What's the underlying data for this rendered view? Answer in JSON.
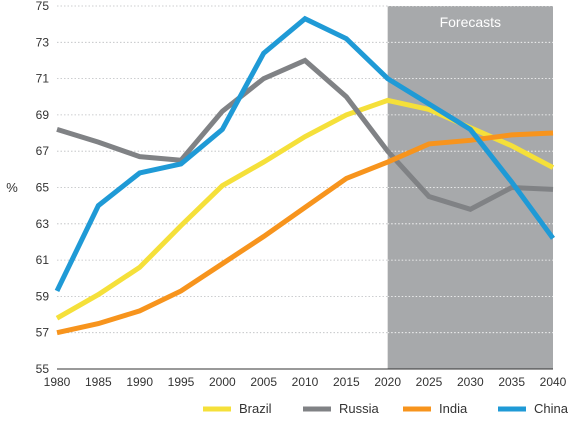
{
  "chart_data": {
    "type": "line",
    "title": "",
    "xlabel": "",
    "ylabel": "%",
    "ylim": [
      55,
      75
    ],
    "xlim": [
      1980,
      2040
    ],
    "yticks": [
      55,
      57,
      59,
      61,
      63,
      65,
      67,
      69,
      71,
      73,
      75
    ],
    "x": [
      1980,
      1985,
      1990,
      1995,
      2000,
      2005,
      2010,
      2015,
      2020,
      2025,
      2030,
      2035,
      2040
    ],
    "forecast": {
      "label": "Forecasts",
      "start": 2020,
      "end": 2040,
      "color": "#a7a9ab"
    },
    "grid": "horizontal",
    "legend_position": "bottom-right",
    "series": [
      {
        "name": "Brazil",
        "color": "#f5e03a",
        "values": [
          57.8,
          59.1,
          60.6,
          62.9,
          65.1,
          66.4,
          67.8,
          69.0,
          69.8,
          69.3,
          68.3,
          67.3,
          66.1
        ]
      },
      {
        "name": "Russia",
        "color": "#808285",
        "values": [
          68.2,
          67.5,
          66.7,
          66.5,
          69.2,
          71.0,
          72.0,
          70.0,
          67.0,
          64.5,
          63.8,
          65.0,
          64.9
        ]
      },
      {
        "name": "India",
        "color": "#f7941d",
        "values": [
          57.0,
          57.5,
          58.2,
          59.3,
          60.8,
          62.3,
          63.9,
          65.5,
          66.4,
          67.4,
          67.6,
          67.9,
          68.0
        ]
      },
      {
        "name": "China",
        "color": "#1f9ad6",
        "values": [
          59.3,
          64.0,
          65.8,
          66.3,
          68.2,
          72.4,
          74.3,
          73.2,
          71.0,
          69.6,
          68.2,
          65.3,
          62.2
        ]
      }
    ]
  }
}
